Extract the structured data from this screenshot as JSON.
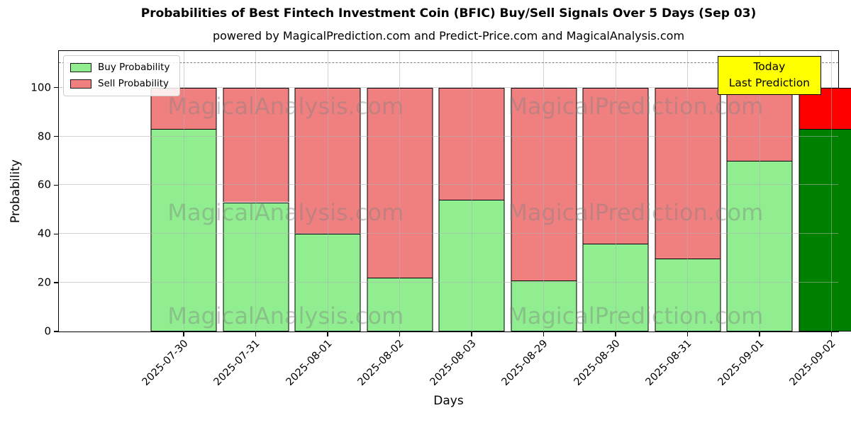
{
  "chart_data": {
    "type": "bar",
    "stacked": true,
    "title": "Probabilities of Best Fintech Investment Coin (BFIC) Buy/Sell Signals Over 5 Days (Sep 03)",
    "subtitle": "powered by MagicalPrediction.com and Predict-Price.com and MagicalAnalysis.com",
    "xlabel": "Days",
    "ylabel": "Probability",
    "categories": [
      "2025-07-30",
      "2025-07-31",
      "2025-08-01",
      "2025-08-02",
      "2025-08-03",
      "2025-08-29",
      "2025-08-30",
      "2025-08-31",
      "2025-09-01",
      "2025-09-02"
    ],
    "series": [
      {
        "name": "Buy Probability",
        "color": "#90ee90",
        "values": [
          83,
          53,
          40,
          22,
          54,
          21,
          36,
          30,
          70,
          83
        ]
      },
      {
        "name": "Sell Probability",
        "color": "#f08080",
        "values": [
          17,
          47,
          60,
          78,
          46,
          79,
          64,
          70,
          30,
          17
        ]
      }
    ],
    "today_index": 9,
    "today_colors": {
      "buy": "#008000",
      "sell": "#ff0000"
    },
    "ylim": [
      0,
      115
    ],
    "yticks": [
      0,
      20,
      40,
      60,
      80,
      100
    ],
    "dashed_line_y": 110,
    "grid": true,
    "legend_position": "upper left",
    "annotation": {
      "lines": [
        "Today",
        "Last Prediction"
      ],
      "bg": "#ffff00",
      "border": "#000000"
    },
    "watermarks": [
      "MagicalAnalysis.com",
      "MagicalPrediction.com"
    ],
    "colors": {
      "bar_edge": "#000000",
      "grid": "#b0b0b0",
      "dashed_line": "#7f7f7f",
      "background": "#ffffff"
    }
  }
}
